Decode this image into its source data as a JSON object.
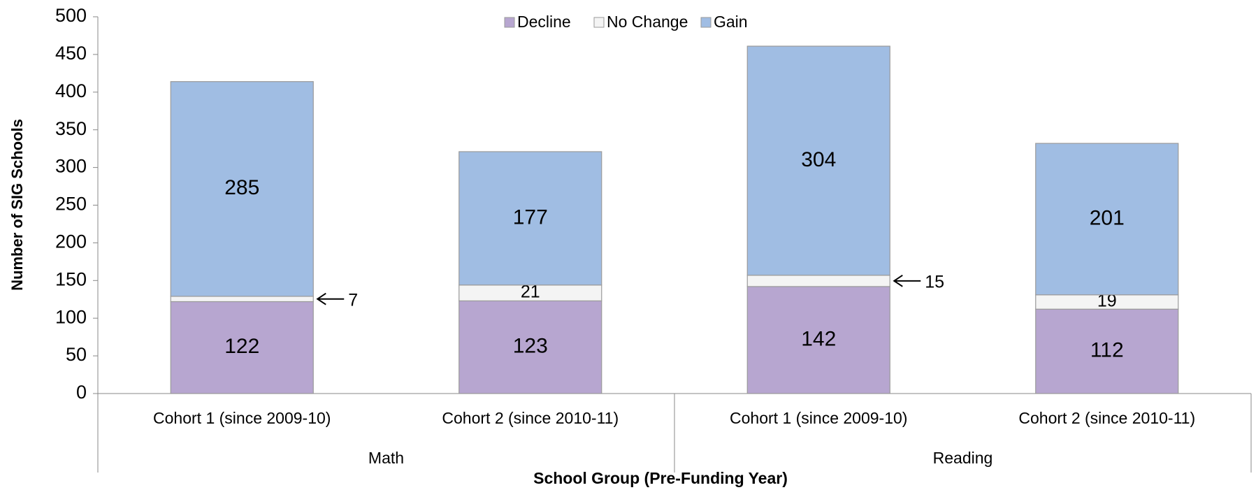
{
  "chart_data": {
    "type": "stacked_bar",
    "y_label": "Number of SIG Schools",
    "x_label": "School Group (Pre-Funding Year)",
    "groups": [
      {
        "name": "Math",
        "categories": [
          "Cohort 1  (since 2009-10)",
          "Cohort 2 (since 2010-11)"
        ]
      },
      {
        "name": "Reading",
        "categories": [
          "Cohort 1  (since 2009-10)",
          "Cohort 2 (since 2010-11)"
        ]
      }
    ],
    "series": [
      {
        "name": "Decline",
        "color": "#b7a6d0",
        "values": [
          122,
          123,
          142,
          112
        ]
      },
      {
        "name": "No Change",
        "color": "#f4f4f4",
        "values": [
          7,
          21,
          15,
          19
        ]
      },
      {
        "name": "Gain",
        "color": "#a0bde3",
        "values": [
          285,
          177,
          304,
          201
        ]
      }
    ],
    "ylim": [
      0,
      500
    ],
    "yticks": [
      0,
      50,
      100,
      150,
      200,
      250,
      300,
      350,
      400,
      450,
      500
    ],
    "legend": "top",
    "grid": false
  }
}
